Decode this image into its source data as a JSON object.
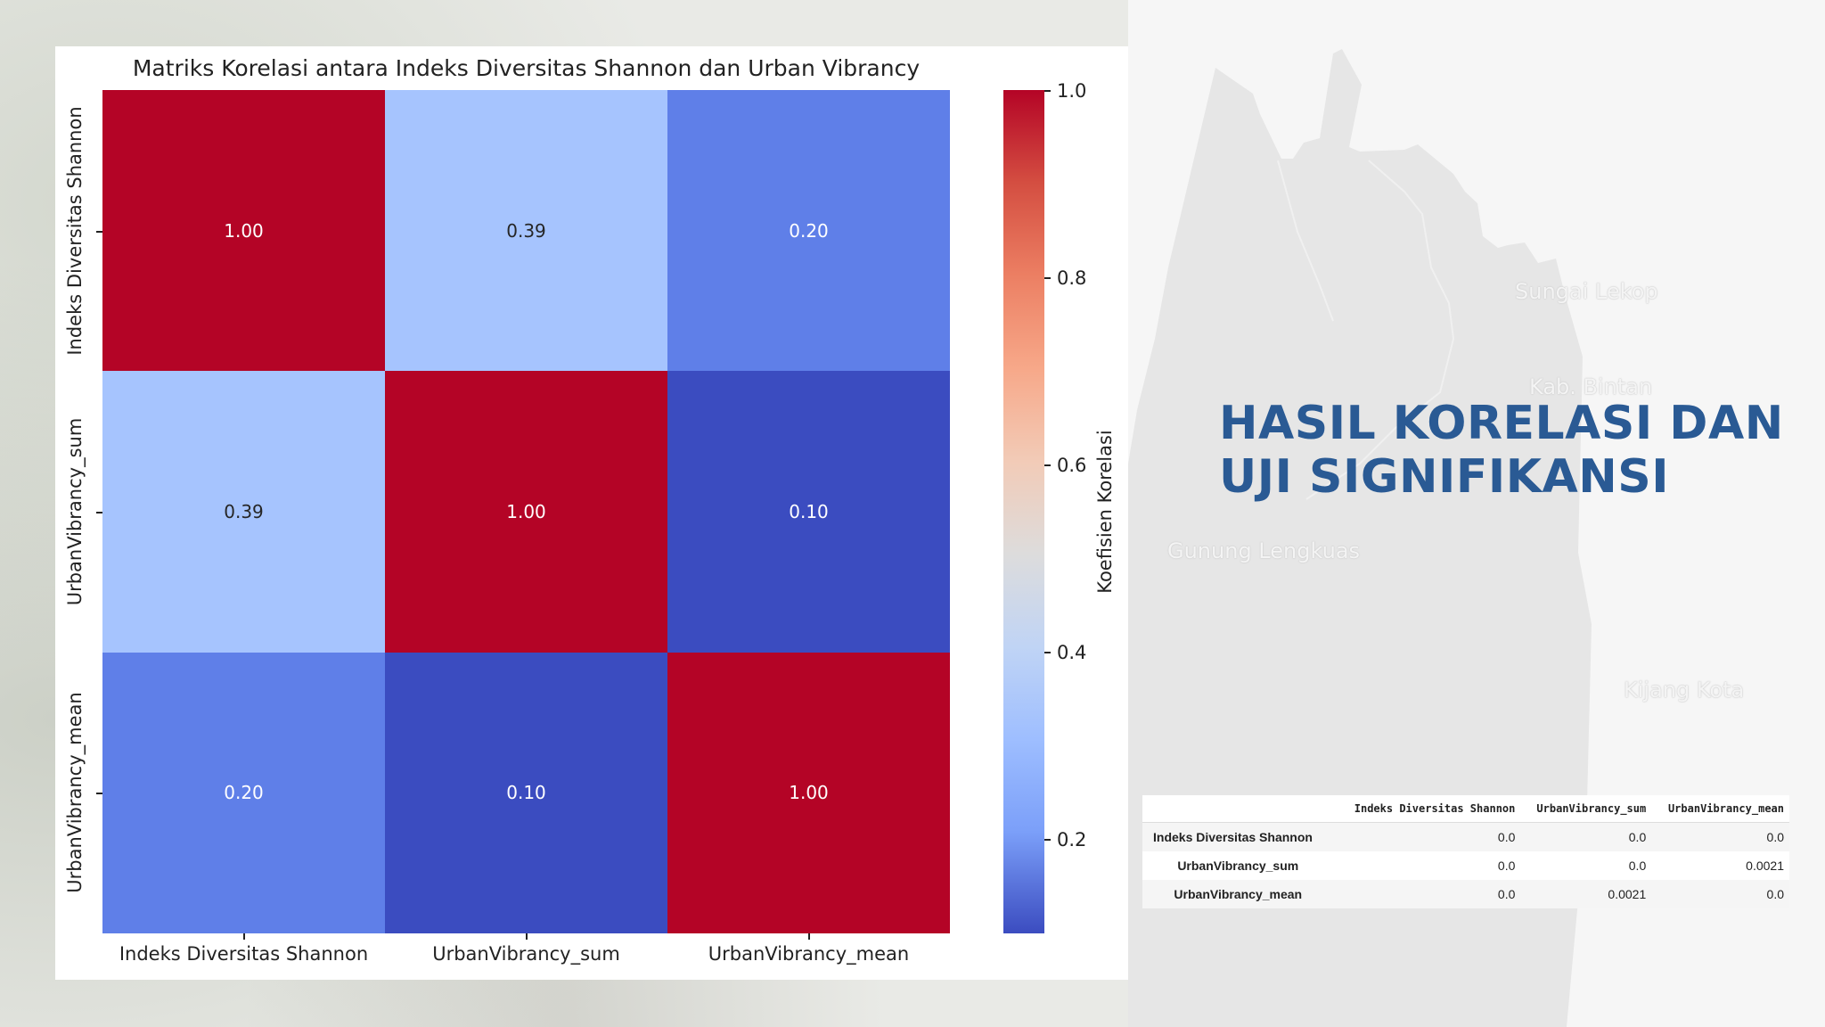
{
  "slide": {
    "title_line1": "HASIL KORELASI DAN",
    "title_line2": "UJI SIGNIFIKANSI",
    "title_color": "#2a5a94"
  },
  "map_labels": [
    "Sungai Lekop",
    "Kab. Bintan",
    "Gunung Lengkuas",
    "Kijang Kota"
  ],
  "chart_data": {
    "type": "heatmap",
    "title": "Matriks Korelasi antara Indeks Diversitas Shannon dan Urban Vibrancy",
    "x_labels": [
      "Indeks Diversitas Shannon",
      "UrbanVibrancy_sum",
      "UrbanVibrancy_mean"
    ],
    "y_labels": [
      "Indeks Diversitas Shannon",
      "UrbanVibrancy_sum",
      "UrbanVibrancy_mean"
    ],
    "values": [
      [
        1.0,
        0.39,
        0.2
      ],
      [
        0.39,
        1.0,
        0.1
      ],
      [
        0.2,
        0.1,
        1.0
      ]
    ],
    "annotations": [
      [
        "1.00",
        "0.39",
        "0.20"
      ],
      [
        "0.39",
        "1.00",
        "0.10"
      ],
      [
        "0.20",
        "0.10",
        "1.00"
      ]
    ],
    "cell_colors": [
      [
        "#b40426",
        "#a6c4fe",
        "#5f7fe8"
      ],
      [
        "#a6c4fe",
        "#b40426",
        "#3b4cc0"
      ],
      [
        "#5f7fe8",
        "#3b4cc0",
        "#b40426"
      ]
    ],
    "text_colors": [
      [
        "#ffffff",
        "#262626",
        "#ffffff"
      ],
      [
        "#262626",
        "#ffffff",
        "#ffffff"
      ],
      [
        "#ffffff",
        "#ffffff",
        "#ffffff"
      ]
    ],
    "colormap": "coolwarm",
    "colorbar": {
      "label": "Koefisien Korelasi",
      "ticks": [
        "1.0",
        "0.8",
        "0.6",
        "0.4",
        "0.2"
      ],
      "tick_values": [
        1.0,
        0.8,
        0.6,
        0.4,
        0.2
      ],
      "range": [
        0.1,
        1.0
      ]
    }
  },
  "pvalue_table": {
    "columns": [
      "",
      "Indeks Diversitas Shannon",
      "UrbanVibrancy_sum",
      "UrbanVibrancy_mean"
    ],
    "rows": [
      {
        "label": "Indeks Diversitas Shannon",
        "values": [
          "0.0",
          "0.0",
          "0.0"
        ]
      },
      {
        "label": "UrbanVibrancy_sum",
        "values": [
          "0.0",
          "0.0",
          "0.0021"
        ]
      },
      {
        "label": "UrbanVibrancy_mean",
        "values": [
          "0.0",
          "0.0021",
          "0.0"
        ]
      }
    ]
  }
}
